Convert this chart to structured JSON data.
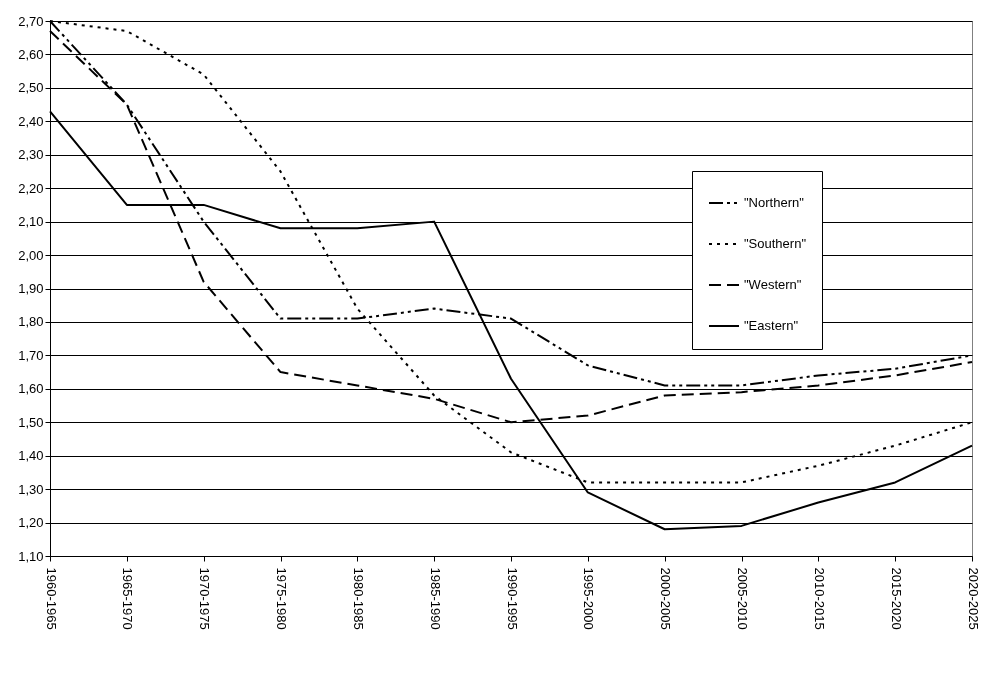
{
  "chart_data": {
    "type": "line",
    "categories": [
      "1960-1965",
      "1965-1970",
      "1970-1975",
      "1975-1980",
      "1980-1985",
      "1985-1990",
      "1990-1995",
      "1995-2000",
      "2000-2005",
      "2005-2010",
      "2010-2015",
      "2015-2020",
      "2020-2025"
    ],
    "series": [
      {
        "name": "\"Northern\"",
        "color": "#000000",
        "line_style": "dashdotdot",
        "values": [
          2.7,
          2.45,
          2.1,
          1.81,
          1.81,
          1.84,
          1.81,
          1.67,
          1.61,
          1.61,
          1.64,
          1.66,
          1.7
        ]
      },
      {
        "name": "\"Southern\"",
        "color": "#000000",
        "line_style": "dotted",
        "values": [
          2.7,
          2.67,
          2.54,
          2.25,
          1.84,
          1.58,
          1.41,
          1.32,
          1.32,
          1.32,
          1.37,
          1.43,
          1.5
        ]
      },
      {
        "name": "\"Western\"",
        "color": "#000000",
        "line_style": "dashed",
        "values": [
          2.67,
          2.45,
          1.92,
          1.65,
          1.61,
          1.57,
          1.5,
          1.52,
          1.58,
          1.59,
          1.61,
          1.64,
          1.68
        ]
      },
      {
        "name": "\"Eastern\"",
        "color": "#000000",
        "line_style": "solid",
        "values": [
          2.43,
          2.15,
          2.15,
          2.08,
          2.08,
          2.1,
          1.63,
          1.29,
          1.18,
          1.19,
          1.26,
          1.32,
          1.43
        ]
      }
    ],
    "ylim": [
      1.1,
      2.7
    ],
    "yticks": [
      {
        "value": 1.1,
        "label": "1,10"
      },
      {
        "value": 1.2,
        "label": "1,20"
      },
      {
        "value": 1.3,
        "label": "1,30"
      },
      {
        "value": 1.4,
        "label": "1,40"
      },
      {
        "value": 1.5,
        "label": "1,50"
      },
      {
        "value": 1.6,
        "label": "1,60"
      },
      {
        "value": 1.7,
        "label": "1,70"
      },
      {
        "value": 1.8,
        "label": "1,80"
      },
      {
        "value": 1.9,
        "label": "1,90"
      },
      {
        "value": 2.0,
        "label": "2,00"
      },
      {
        "value": 2.1,
        "label": "2,10"
      },
      {
        "value": 2.2,
        "label": "2,20"
      },
      {
        "value": 2.3,
        "label": "2,30"
      },
      {
        "value": 2.4,
        "label": "2,40"
      },
      {
        "value": 2.5,
        "label": "2,50"
      },
      {
        "value": 2.6,
        "label": "2,60"
      },
      {
        "value": 2.7,
        "label": "2,70"
      }
    ],
    "grid": "y",
    "legend": "top right",
    "marker": "none"
  }
}
